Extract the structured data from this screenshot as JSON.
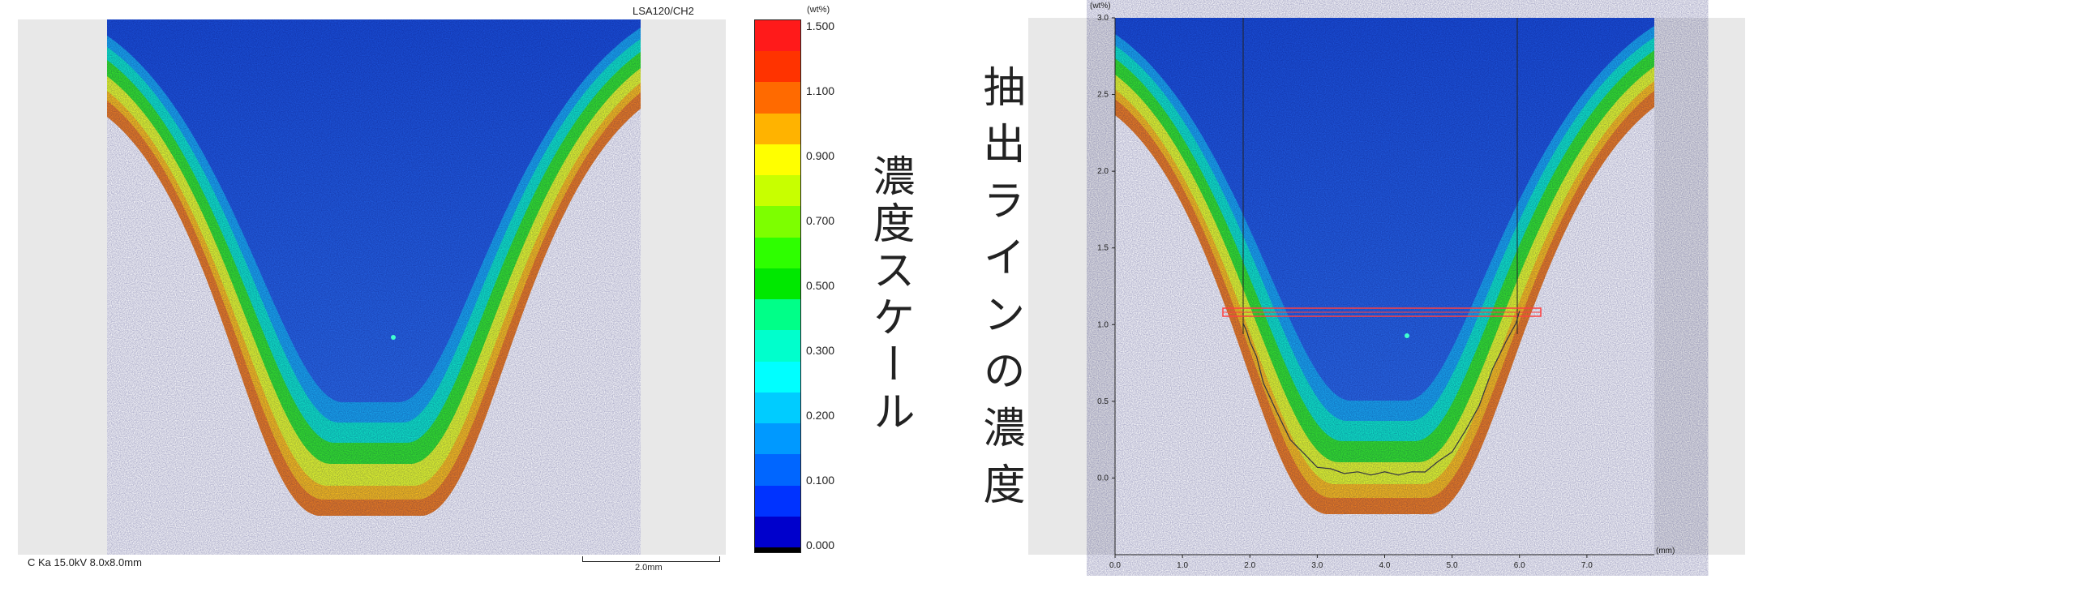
{
  "left_map": {
    "title": "LSA120/CH2",
    "condition": "C Ka 15.0kV 8.0x8.0mm",
    "scalebar_label": "2.0mm",
    "spot_color": "#40ffd0"
  },
  "colorbar": {
    "unit": "(wt%)",
    "max_label": "1.500",
    "tick_labels": [
      "1.500",
      "1.100",
      "0.900",
      "0.700",
      "0.500",
      "0.300",
      "0.200",
      "0.100",
      "0.000"
    ],
    "colors": [
      "#ff1a1a",
      "#ff3300",
      "#ff6a00",
      "#ffb300",
      "#ffff00",
      "#c8ff00",
      "#7dff00",
      "#2eff00",
      "#00e800",
      "#00ff88",
      "#00ffcc",
      "#00ffff",
      "#00ccff",
      "#0099ff",
      "#0066ff",
      "#0033ff",
      "#0000cc",
      "#000000"
    ],
    "caption": "濃度スケール"
  },
  "middle_caption": "抽出ラインの濃度",
  "right_plot": {
    "y_unit": "(wt%)",
    "x_unit": "(mm)",
    "y_ticks": [
      "3.0",
      "2.5",
      "2.0",
      "1.5",
      "1.0",
      "0.5",
      "0.0"
    ],
    "x_ticks": [
      "0.0",
      "1.0",
      "2.0",
      "3.0",
      "4.0",
      "5.0",
      "6.0",
      "7.0"
    ],
    "line_color": "#ff4040",
    "profile_color": "#333344"
  },
  "chart_data": {
    "type": "line",
    "title": "",
    "xlabel": "(mm)",
    "ylabel": "(wt%)",
    "xlim": [
      0,
      8
    ],
    "ylim": [
      -0.5,
      3.0
    ],
    "grid": false,
    "series": [
      {
        "x": [
          1.9,
          1.95,
          2.0,
          2.1,
          2.2,
          2.4,
          2.6,
          2.8,
          3.0,
          3.2,
          3.4,
          3.6,
          3.8,
          4.0,
          4.2,
          4.4,
          4.6,
          4.8,
          5.0,
          5.2,
          5.4,
          5.6,
          5.8,
          5.95,
          6.0
        ],
        "values": [
          1.02,
          0.95,
          0.9,
          0.78,
          0.63,
          0.42,
          0.26,
          0.15,
          0.08,
          0.05,
          0.04,
          0.03,
          0.03,
          0.03,
          0.03,
          0.03,
          0.05,
          0.1,
          0.18,
          0.3,
          0.48,
          0.7,
          0.9,
          1.0,
          1.1
        ]
      }
    ]
  }
}
